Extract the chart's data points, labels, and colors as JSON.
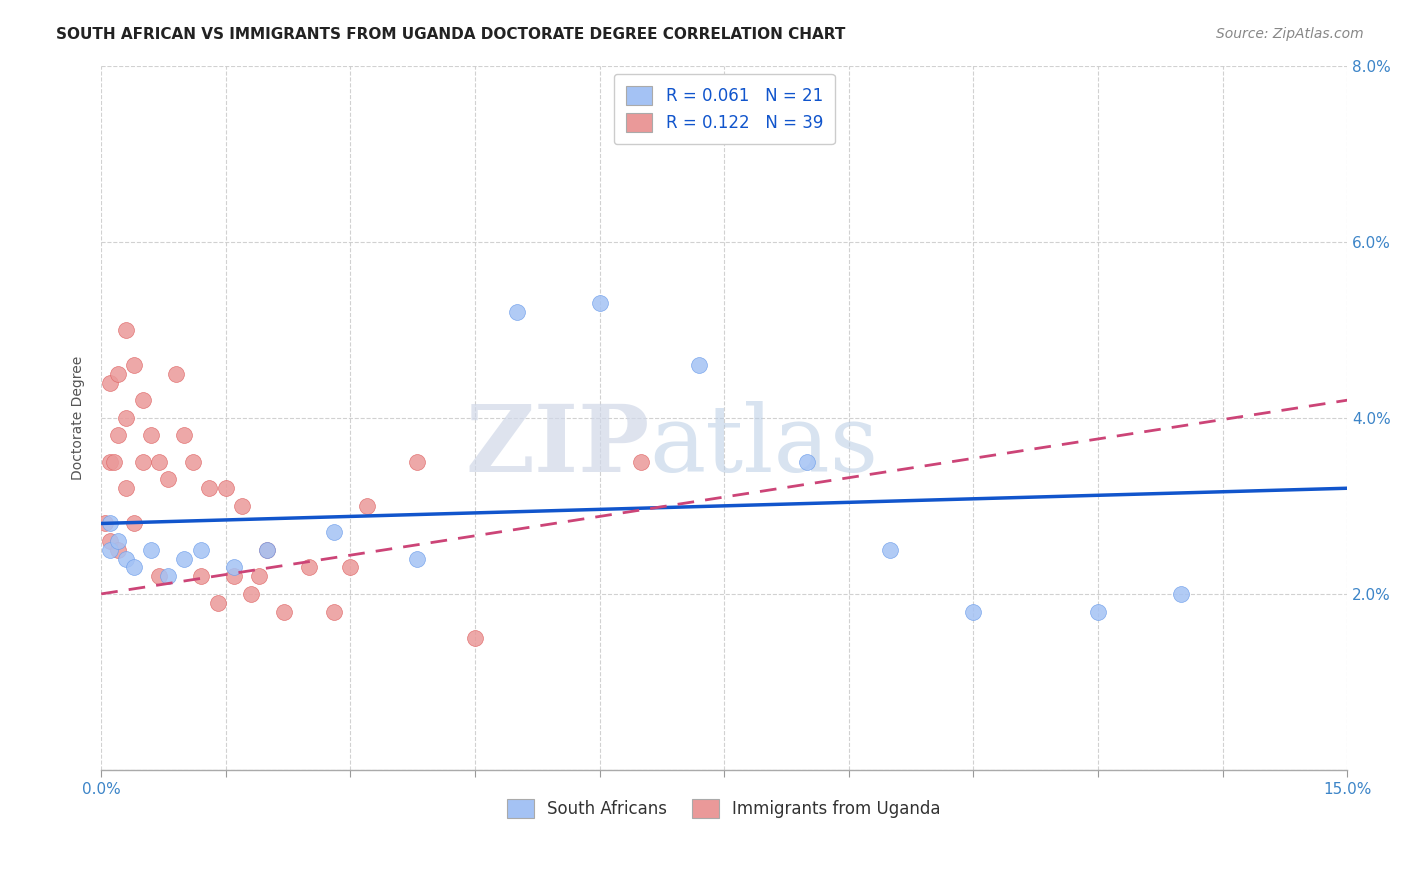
{
  "title": "SOUTH AFRICAN VS IMMIGRANTS FROM UGANDA DOCTORATE DEGREE CORRELATION CHART",
  "source": "Source: ZipAtlas.com",
  "ylabel": "Doctorate Degree",
  "xlim": [
    0.0,
    0.15
  ],
  "ylim": [
    0.0,
    0.08
  ],
  "color_blue": "#a4c2f4",
  "color_pink": "#ea9999",
  "color_blue_edge": "#6d9eeb",
  "color_pink_edge": "#e06666",
  "color_trend_blue": "#1155cc",
  "color_trend_pink": "#cc4477",
  "watermark_zip": "ZIP",
  "watermark_atlas": "atlas",
  "sa_x": [
    0.001,
    0.001,
    0.002,
    0.003,
    0.004,
    0.006,
    0.008,
    0.01,
    0.012,
    0.016,
    0.02,
    0.028,
    0.038,
    0.05,
    0.06,
    0.072,
    0.085,
    0.095,
    0.105,
    0.12,
    0.13
  ],
  "sa_y": [
    0.028,
    0.025,
    0.026,
    0.024,
    0.023,
    0.025,
    0.022,
    0.024,
    0.025,
    0.023,
    0.025,
    0.027,
    0.024,
    0.052,
    0.053,
    0.046,
    0.035,
    0.025,
    0.018,
    0.018,
    0.02
  ],
  "ug_x": [
    0.0005,
    0.001,
    0.001,
    0.001,
    0.0015,
    0.002,
    0.002,
    0.002,
    0.003,
    0.003,
    0.003,
    0.004,
    0.004,
    0.005,
    0.005,
    0.006,
    0.007,
    0.007,
    0.008,
    0.009,
    0.01,
    0.011,
    0.012,
    0.013,
    0.014,
    0.015,
    0.016,
    0.017,
    0.018,
    0.019,
    0.02,
    0.022,
    0.025,
    0.028,
    0.03,
    0.032,
    0.038,
    0.045,
    0.065
  ],
  "ug_y": [
    0.028,
    0.044,
    0.035,
    0.026,
    0.035,
    0.045,
    0.038,
    0.025,
    0.05,
    0.04,
    0.032,
    0.046,
    0.028,
    0.042,
    0.035,
    0.038,
    0.035,
    0.022,
    0.033,
    0.045,
    0.038,
    0.035,
    0.022,
    0.032,
    0.019,
    0.032,
    0.022,
    0.03,
    0.02,
    0.022,
    0.025,
    0.018,
    0.023,
    0.018,
    0.023,
    0.03,
    0.035,
    0.015,
    0.035
  ],
  "trend_blue_x0": 0.0,
  "trend_blue_y0": 0.028,
  "trend_blue_x1": 0.15,
  "trend_blue_y1": 0.032,
  "trend_pink_x0": 0.0,
  "trend_pink_y0": 0.02,
  "trend_pink_x1": 0.15,
  "trend_pink_y1": 0.042,
  "title_fontsize": 11,
  "axis_label_fontsize": 10,
  "tick_fontsize": 11,
  "legend_fontsize": 12,
  "source_fontsize": 10
}
